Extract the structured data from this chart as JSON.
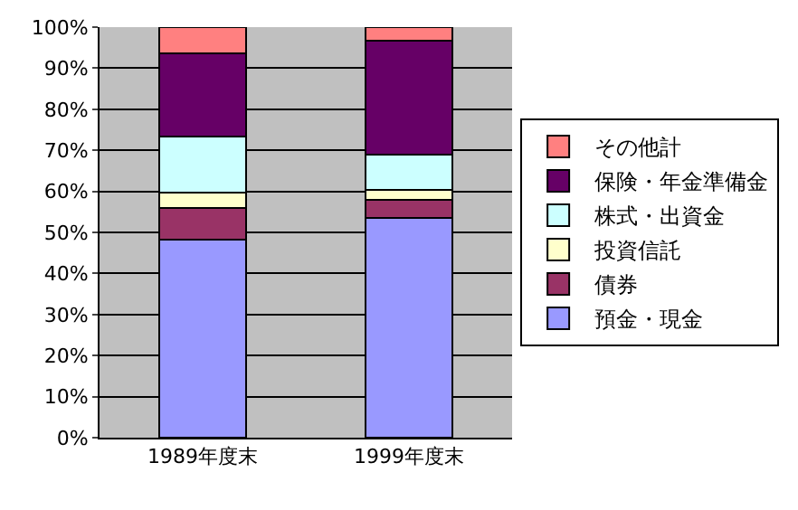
{
  "chart_data": {
    "type": "bar",
    "stacked": true,
    "categories": [
      "1989年度末",
      "1999年度末"
    ],
    "series": [
      {
        "name": "預金・現金",
        "color": "#9999ff",
        "values": [
          48.2,
          53.5
        ]
      },
      {
        "name": "債券",
        "color": "#993366",
        "values": [
          7.8,
          4.4
        ]
      },
      {
        "name": "投資信託",
        "color": "#ffffcc",
        "values": [
          3.8,
          2.4
        ]
      },
      {
        "name": "株式・出資金",
        "color": "#ccffff",
        "values": [
          13.6,
          8.7
        ]
      },
      {
        "name": "保険・年金準備金",
        "color": "#660066",
        "values": [
          20.3,
          27.6
        ]
      },
      {
        "name": "その他計",
        "color": "#ff8080",
        "values": [
          6.3,
          3.4
        ]
      }
    ],
    "ylim": [
      0,
      100
    ],
    "yticks": [
      {
        "value": 0,
        "label": "0%"
      },
      {
        "value": 10,
        "label": "10%"
      },
      {
        "value": 20,
        "label": "20%"
      },
      {
        "value": 30,
        "label": "30%"
      },
      {
        "value": 40,
        "label": "40%"
      },
      {
        "value": 50,
        "label": "50%"
      },
      {
        "value": 60,
        "label": "60%"
      },
      {
        "value": 70,
        "label": "70%"
      },
      {
        "value": 80,
        "label": "80%"
      },
      {
        "value": 90,
        "label": "90%"
      },
      {
        "value": 100,
        "label": "100%"
      }
    ],
    "grid": "y",
    "legend": "right"
  }
}
